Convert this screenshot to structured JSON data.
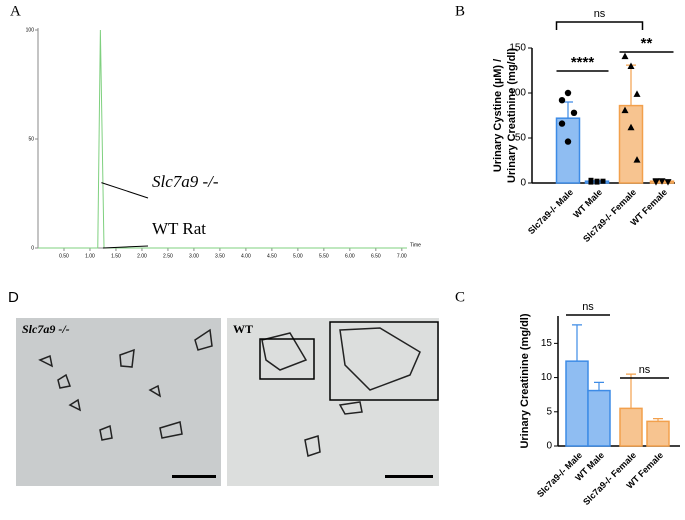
{
  "chart_data": [
    {
      "panel": "A",
      "type": "line",
      "xlabel": "Time",
      "x": [
        0,
        1.15,
        1.2,
        1.27,
        7.1
      ],
      "series": [
        {
          "color": "#7fd07f",
          "values": [
            0,
            0,
            100,
            0,
            0
          ]
        }
      ],
      "xlim": [
        0,
        7.1
      ],
      "ylim": [
        0,
        100
      ],
      "xticks": [
        {
          "value": 0.5,
          "label": "0.50"
        },
        {
          "value": 1,
          "label": "1.00"
        },
        {
          "value": 1.5,
          "label": "1.50"
        },
        {
          "value": 2,
          "label": "2.00"
        },
        {
          "value": 2.5,
          "label": "2.50"
        },
        {
          "value": 3,
          "label": "3.00"
        },
        {
          "value": 3.5,
          "label": "3.50"
        },
        {
          "value": 4,
          "label": "4.00"
        },
        {
          "value": 4.5,
          "label": "4.50"
        },
        {
          "value": 5,
          "label": "5.00"
        },
        {
          "value": 5.5,
          "label": "5.50"
        },
        {
          "value": 6,
          "label": "6.00"
        },
        {
          "value": 6.5,
          "label": "6.50"
        },
        {
          "value": 7,
          "label": "7.00"
        }
      ],
      "yticks": [
        0,
        50,
        100
      ],
      "annotations": [
        {
          "label": "Slc7a9 -/-",
          "x": 1.22,
          "y": 30
        },
        {
          "label": "WT Rat",
          "x": 1.25,
          "y": 0
        }
      ]
    },
    {
      "panel": "B",
      "type": "bar",
      "ylabel": [
        "Urinary Cystine (µM) /",
        "Urinary Creatinine (mg/dl)"
      ],
      "categories": [
        "Slc7a9-/- Male",
        "WT Male",
        "Slc7a9-/- Female",
        "WT Female"
      ],
      "values": [
        72,
        2,
        86,
        2
      ],
      "errors": [
        18,
        0.5,
        45,
        0.5
      ],
      "colors": [
        "#8fbdf2",
        "#8fbdf2",
        "#f7c490",
        "#f7c490"
      ],
      "edge_colors": [
        "#3d8be6",
        "#3d8be6",
        "#f2a04c",
        "#f2a04c"
      ],
      "points": [
        [
          92,
          100,
          78,
          66,
          46
        ],
        [
          1,
          2,
          2,
          3,
          1
        ],
        [
          141,
          130,
          99,
          81,
          62,
          26
        ],
        [
          1,
          2,
          1,
          2
        ]
      ],
      "markers": [
        "circle",
        "square",
        "triangle",
        "triangle-down"
      ],
      "comparisons": [
        {
          "label": "ns",
          "from": 0,
          "to": 2
        },
        {
          "label": "****",
          "from": 0,
          "to": 1
        },
        {
          "label": "**",
          "from": 2,
          "to": 3
        }
      ],
      "ylim": [
        0,
        150
      ],
      "yticks": [
        0,
        50,
        100,
        150
      ]
    },
    {
      "panel": "C",
      "type": "bar",
      "ylabel": [
        "Urinary Creatinine (mg/dl)"
      ],
      "categories": [
        "Slc7a9-/- Male",
        "WT Male",
        "Slc7a9-/- Female",
        "WT Female"
      ],
      "values": [
        12.4,
        8.1,
        5.5,
        3.6
      ],
      "errors": [
        5.3,
        1.2,
        5.0,
        0.4
      ],
      "colors": [
        "#8fbdf2",
        "#8fbdf2",
        "#f7c490",
        "#f7c490"
      ],
      "edge_colors": [
        "#3d8be6",
        "#3d8be6",
        "#f2a04c",
        "#f2a04c"
      ],
      "comparisons": [
        {
          "label": "ns",
          "from": 0,
          "to": 1
        },
        {
          "label": "ns",
          "from": 2,
          "to": 3
        }
      ],
      "ylim": [
        0,
        19
      ],
      "yticks": [
        0,
        5,
        10,
        15
      ]
    }
  ],
  "micrographs": {
    "panel": "D",
    "labels": [
      "Slc7a9 -/-",
      "WT"
    ]
  }
}
